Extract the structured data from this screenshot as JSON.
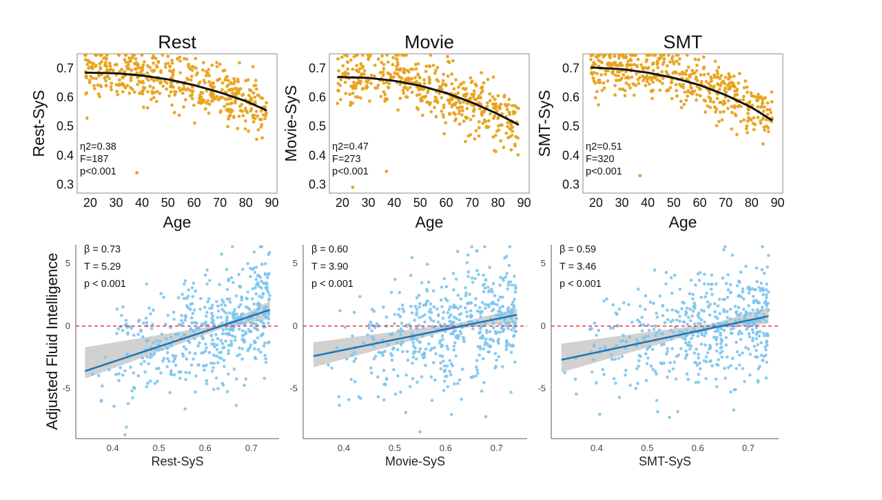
{
  "figure": {
    "shared_ylabel": "Adjusted Fluid Intelligence"
  },
  "colors": {
    "top_points": "#e8a21b",
    "top_fit": "#111111",
    "bottom_points": "#7cc4ee",
    "bottom_fit": "#1f77b4",
    "ci_band": "#c9c9c9",
    "zero_line": "#e8242b"
  },
  "chart_data": [
    {
      "type": "scatter",
      "title": "Rest",
      "xlabel": "Age",
      "ylabel": "Rest-SyS",
      "xlim": [
        15,
        92
      ],
      "ylim": [
        0.27,
        0.75
      ],
      "xticks": [
        "20",
        "30",
        "40",
        "50",
        "60",
        "70",
        "80",
        "90"
      ],
      "yticks": [
        "0.3",
        "0.4",
        "0.5",
        "0.6",
        "0.7"
      ],
      "fit": {
        "type": "quadratic",
        "x": [
          18,
          30,
          40,
          50,
          60,
          70,
          80,
          88
        ],
        "y": [
          0.685,
          0.683,
          0.675,
          0.662,
          0.642,
          0.617,
          0.587,
          0.555
        ]
      },
      "point_cloud": {
        "n": 480,
        "x_range": [
          18,
          88
        ],
        "sd": 0.045,
        "outliers": [
          {
            "x": 38,
            "y": 0.34
          }
        ]
      },
      "annotations": [
        "η2=0.38",
        "F=187",
        "p<0.001"
      ]
    },
    {
      "type": "scatter",
      "title": "Movie",
      "xlabel": "Age",
      "ylabel": "Movie-SyS",
      "xlim": [
        15,
        92
      ],
      "ylim": [
        0.27,
        0.75
      ],
      "xticks": [
        "20",
        "30",
        "40",
        "50",
        "60",
        "70",
        "80",
        "90"
      ],
      "yticks": [
        "0.3",
        "0.4",
        "0.5",
        "0.6",
        "0.7"
      ],
      "fit": {
        "type": "quadratic",
        "x": [
          18,
          30,
          40,
          50,
          60,
          70,
          80,
          88
        ],
        "y": [
          0.67,
          0.667,
          0.657,
          0.64,
          0.615,
          0.582,
          0.542,
          0.505
        ]
      },
      "point_cloud": {
        "n": 480,
        "x_range": [
          18,
          88
        ],
        "sd": 0.05,
        "outliers": [
          {
            "x": 24,
            "y": 0.29
          },
          {
            "x": 37,
            "y": 0.345
          }
        ]
      },
      "annotations": [
        "η2=0.47",
        "F=273",
        "p<0.001"
      ]
    },
    {
      "type": "scatter",
      "title": "SMT",
      "xlabel": "Age",
      "ylabel": "SMT-SyS",
      "xlim": [
        15,
        92
      ],
      "ylim": [
        0.27,
        0.75
      ],
      "xticks": [
        "20",
        "30",
        "40",
        "50",
        "60",
        "70",
        "80",
        "90"
      ],
      "yticks": [
        "0.3",
        "0.4",
        "0.5",
        "0.6",
        "0.7"
      ],
      "fit": {
        "type": "quadratic",
        "x": [
          18,
          30,
          40,
          50,
          60,
          70,
          80,
          88
        ],
        "y": [
          0.703,
          0.697,
          0.685,
          0.667,
          0.642,
          0.608,
          0.565,
          0.52
        ]
      },
      "point_cloud": {
        "n": 480,
        "x_range": [
          18,
          88
        ],
        "sd": 0.045,
        "outliers": [
          {
            "x": 37,
            "y": 0.33
          }
        ]
      },
      "annotations": [
        "η2=0.51",
        "F=320",
        "p<0.001"
      ]
    },
    {
      "type": "scatter",
      "xlabel": "Rest-SyS",
      "ylabel": "",
      "xlim": [
        0.32,
        0.76
      ],
      "ylim": [
        -9,
        6.5
      ],
      "xticks": [
        "0.4",
        "0.5",
        "0.6",
        "0.7"
      ],
      "yticks": [
        "-5",
        "0",
        "5"
      ],
      "fit": {
        "type": "linear",
        "x": [
          0.34,
          0.74
        ],
        "y": [
          -3.6,
          1.3
        ]
      },
      "ci_band": {
        "x": [
          0.34,
          0.64,
          0.74
        ],
        "lower": [
          -4.2,
          -0.15,
          0.6
        ],
        "upper": [
          -1.7,
          0.15,
          2.0
        ]
      },
      "reference_line": {
        "y": 0,
        "style": "dashed"
      },
      "point_cloud": {
        "n": 520,
        "x_range": [
          0.34,
          0.74
        ],
        "sd": 2.3
      },
      "annotations": [
        "β = 0.73",
        "T = 5.29",
        "p < 0.001"
      ]
    },
    {
      "type": "scatter",
      "xlabel": "Movie-SyS",
      "ylabel": "",
      "xlim": [
        0.32,
        0.76
      ],
      "ylim": [
        -9,
        6.5
      ],
      "xticks": [
        "0.4",
        "0.5",
        "0.6",
        "0.7"
      ],
      "yticks": [
        "-5",
        "0",
        "5"
      ],
      "fit": {
        "type": "linear",
        "x": [
          0.34,
          0.74
        ],
        "y": [
          -2.4,
          0.9
        ]
      },
      "ci_band": {
        "x": [
          0.34,
          0.62,
          0.74
        ],
        "lower": [
          -3.3,
          -0.2,
          0.3
        ],
        "upper": [
          -1.3,
          0.2,
          1.4
        ]
      },
      "reference_line": {
        "y": 0,
        "style": "dashed"
      },
      "point_cloud": {
        "n": 520,
        "x_range": [
          0.34,
          0.74
        ],
        "sd": 2.3
      },
      "annotations": [
        "β = 0.60",
        "T = 3.90",
        "p < 0.001"
      ]
    },
    {
      "type": "scatter",
      "xlabel": "SMT-SyS",
      "ylabel": "",
      "xlim": [
        0.31,
        0.76
      ],
      "ylim": [
        -9,
        6.5
      ],
      "xticks": [
        "0.4",
        "0.5",
        "0.6",
        "0.7"
      ],
      "yticks": [
        "-5",
        "0",
        "5"
      ],
      "fit": {
        "type": "linear",
        "x": [
          0.33,
          0.74
        ],
        "y": [
          -2.7,
          0.8
        ]
      },
      "ci_band": {
        "x": [
          0.33,
          0.63,
          0.74
        ],
        "lower": [
          -3.7,
          -0.2,
          0.2
        ],
        "upper": [
          -1.4,
          0.2,
          1.5
        ]
      },
      "reference_line": {
        "y": 0,
        "style": "dashed"
      },
      "point_cloud": {
        "n": 520,
        "x_range": [
          0.33,
          0.74
        ],
        "sd": 2.3
      },
      "annotations": [
        "β = 0.59",
        "T = 3.46",
        "p < 0.001"
      ]
    }
  ]
}
